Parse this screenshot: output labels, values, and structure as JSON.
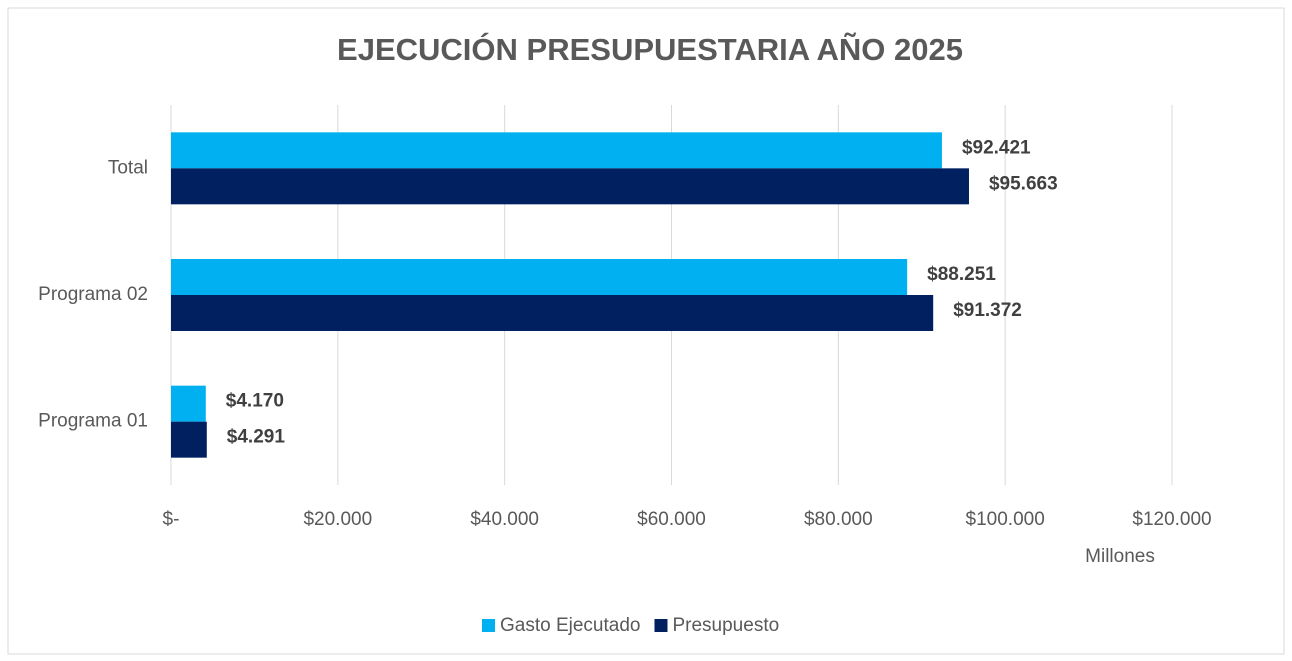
{
  "chart_data": {
    "type": "hbar",
    "title": "EJECUCIÓN PRESUPUESTARIA AÑO 2025",
    "categories": [
      "Total",
      "Programa 02",
      "Programa 01"
    ],
    "series": [
      {
        "name": "Gasto Ejecutado",
        "color": "#00b0f0",
        "values": [
          92421,
          88251,
          4170
        ],
        "value_labels": [
          "$92.421",
          "$88.251",
          "$4.170"
        ]
      },
      {
        "name": "Presupuesto",
        "color": "#002060",
        "values": [
          95663,
          91372,
          4291
        ],
        "value_labels": [
          "$95.663",
          "$91.372",
          "$4.291"
        ]
      }
    ],
    "xlabel": "Millones",
    "xlim": [
      0,
      120000
    ],
    "xticks": [
      {
        "value": 0,
        "label": "$-"
      },
      {
        "value": 20000,
        "label": "$20.000"
      },
      {
        "value": 40000,
        "label": "$40.000"
      },
      {
        "value": 60000,
        "label": "$60.000"
      },
      {
        "value": 80000,
        "label": "$80.000"
      },
      {
        "value": 100000,
        "label": "$100.000"
      },
      {
        "value": 120000,
        "label": "$120.000"
      }
    ],
    "grid": true,
    "legend": "bottom"
  }
}
